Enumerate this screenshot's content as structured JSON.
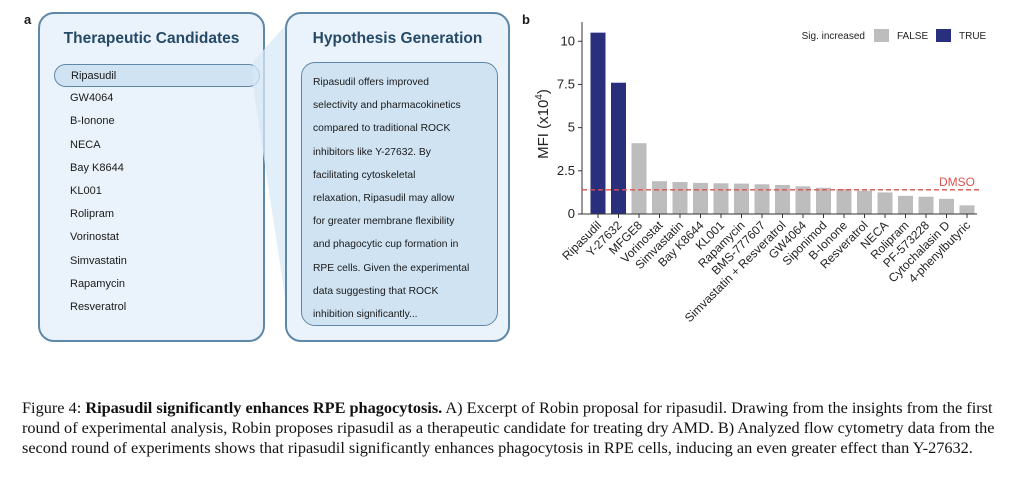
{
  "panel_a": {
    "letter": "a",
    "candidates": {
      "title": "Therapeutic Candidates",
      "items": [
        "Ripasudil",
        "GW4064",
        "B-Ionone",
        "NECA",
        "Bay K8644",
        "KL001",
        "Rolipram",
        "Vorinostat",
        "Simvastatin",
        "Rapamycin",
        "Resveratrol"
      ],
      "selected_index": 0
    },
    "hypothesis": {
      "title": "Hypothesis Generation",
      "lines": [
        "Ripasudil offers improved",
        "selectivity and pharmacokinetics",
        "compared to traditional ROCK",
        "inhibitors like Y-27632. By",
        "facilitating cytoskeletal",
        "relaxation, Ripasudil may allow",
        "for greater membrane flexibility",
        "and phagocytic cup formation in",
        "RPE cells. Given the experimental",
        "data suggesting that ROCK",
        "inhibition significantly..."
      ]
    }
  },
  "panel_b": {
    "letter": "b",
    "colors": {
      "false": "#bdbdbd",
      "true": "#2a2f7d",
      "dmso": "#d9534f"
    }
  },
  "chart_data": {
    "type": "bar",
    "title": "",
    "xlabel": "",
    "ylabel": "MFI (x10",
    "ylabel_sup": "4",
    "ylabel_close": ")",
    "ylim": [
      0,
      11
    ],
    "yticks": [
      0,
      2.5,
      5,
      7.5,
      10
    ],
    "ytick_labels": [
      "0",
      "2.5",
      "5",
      "7.5",
      "10"
    ],
    "legend": {
      "title": "Sig. increased",
      "entries": [
        "FALSE",
        "TRUE"
      ],
      "placement": "top-right"
    },
    "categories": [
      "Ripasudil",
      "Y-27632",
      "MFGE8",
      "Vorinostat",
      "Simvastatin",
      "Bay K8644",
      "KL001",
      "Rapamycin",
      "BMS-777607",
      "Simvastatin + Resveratrol",
      "GW4064",
      "Siponimod",
      "B-Ionone",
      "Resveratrol",
      "NECA",
      "Rolipram",
      "PF-573228",
      "Cytochalasin D",
      "4-phenylbutyric"
    ],
    "values": [
      10.5,
      7.6,
      4.1,
      1.9,
      1.85,
      1.8,
      1.78,
      1.76,
      1.72,
      1.68,
      1.6,
      1.52,
      1.45,
      1.35,
      1.25,
      1.05,
      1.0,
      0.88,
      0.5
    ],
    "significant": [
      true,
      true,
      false,
      false,
      false,
      false,
      false,
      false,
      false,
      false,
      false,
      false,
      false,
      false,
      false,
      false,
      false,
      false,
      false
    ],
    "reference_line": {
      "label": "DMSO",
      "value": 1.4
    }
  },
  "caption": {
    "lead": "Figure 4:",
    "bold": "Ripasudil significantly enhances RPE phagocytosis.",
    "rest": "A) Excerpt of Robin proposal for ripasudil. Drawing from the insights from the first round of experimental analysis, Robin proposes ripasudil as a therapeutic candidate for treating dry AMD. B) Analyzed flow cytometry data from the second round of experiments shows that ripasudil significantly enhances phagocytosis in RPE cells, inducing an even greater effect than Y-27632."
  }
}
